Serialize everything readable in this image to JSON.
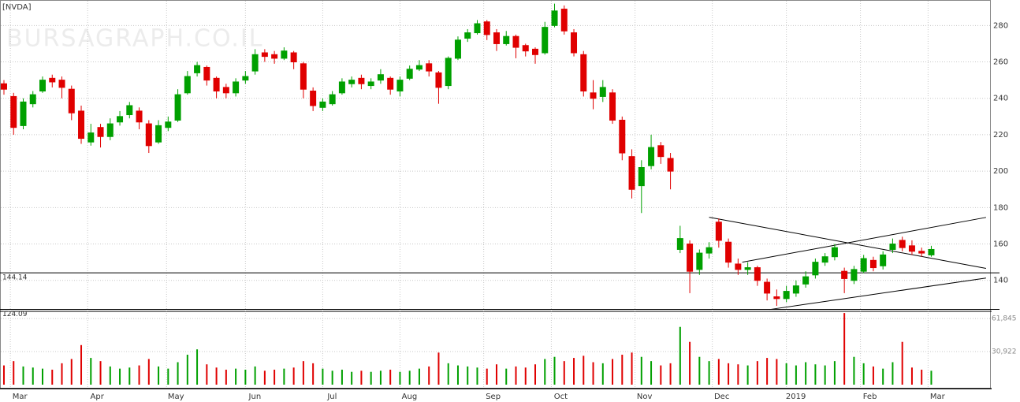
{
  "chart_data": {
    "type": "candlestick",
    "title": "[NVDA]",
    "watermark": "BURSAGRAPH.CO.IL",
    "x": [
      0,
      3,
      6,
      9,
      12,
      15,
      18,
      21,
      24,
      27,
      30,
      33,
      36,
      39,
      42,
      45,
      48,
      51,
      54,
      57,
      60,
      63,
      66,
      69,
      72,
      75,
      78,
      81,
      84,
      87,
      90,
      93,
      96,
      99,
      102,
      105,
      108,
      111,
      114,
      117,
      120,
      123,
      126,
      129,
      132,
      135,
      138,
      141,
      144,
      147,
      150,
      153,
      156,
      159,
      162,
      165,
      168,
      171,
      174,
      177,
      180,
      183,
      186,
      189,
      192,
      195,
      198,
      201,
      204,
      207,
      210,
      213,
      216,
      219,
      222,
      225,
      228,
      231,
      234,
      237,
      240,
      243,
      246,
      249,
      252,
      255,
      258,
      261,
      264,
      267,
      270,
      273,
      276,
      279,
      282,
      285,
      288
    ],
    "open": [
      248,
      241,
      225,
      237,
      244,
      251,
      250,
      245,
      233,
      216,
      224,
      219,
      227,
      231,
      233,
      226,
      216,
      224,
      228,
      243,
      254,
      257,
      251,
      246,
      243,
      250,
      255,
      265,
      264,
      262,
      265,
      259,
      244,
      235,
      237,
      243,
      248,
      251,
      247,
      250,
      251,
      244,
      251,
      256,
      259,
      254,
      247,
      262,
      273,
      276,
      282,
      276,
      270,
      274,
      269,
      267,
      265,
      280,
      289,
      276,
      264,
      243,
      241,
      243,
      228,
      208,
      192,
      203,
      214,
      207,
      157,
      160,
      146,
      155,
      172,
      161,
      149,
      146,
      147,
      139,
      131,
      130,
      133,
      138,
      143,
      150,
      153,
      145,
      140,
      145,
      151,
      148,
      157,
      162,
      159,
      156,
      154
    ],
    "high": [
      250,
      243,
      240,
      244,
      252,
      253,
      252,
      247,
      236,
      226,
      226,
      229,
      233,
      238,
      235,
      228,
      228,
      230,
      245,
      255,
      260,
      258,
      252,
      248,
      251,
      255,
      267,
      267,
      266,
      268,
      266,
      260,
      246,
      240,
      244,
      251,
      252,
      253,
      251,
      256,
      252,
      252,
      258,
      261,
      261,
      255,
      263,
      274,
      278,
      283,
      283,
      278,
      277,
      275,
      270,
      268,
      282,
      292,
      291,
      278,
      266,
      250,
      250,
      245,
      230,
      212,
      206,
      220,
      216,
      210,
      170,
      162,
      157,
      161,
      174,
      163,
      152,
      150,
      148,
      141,
      135,
      137,
      140,
      145,
      152,
      155,
      160,
      147,
      148,
      154,
      153,
      156,
      163,
      164,
      162,
      158,
      159
    ],
    "low": [
      242,
      220,
      223,
      235,
      243,
      246,
      240,
      228,
      215,
      214,
      213,
      217,
      225,
      229,
      223,
      210,
      215,
      222,
      227,
      242,
      252,
      247,
      240,
      240,
      241,
      248,
      253,
      260,
      259,
      261,
      256,
      240,
      233,
      233,
      236,
      242,
      246,
      245,
      245,
      248,
      242,
      241,
      250,
      255,
      252,
      237,
      245,
      261,
      271,
      275,
      272,
      266,
      269,
      262,
      263,
      259,
      264,
      279,
      275,
      263,
      241,
      234,
      238,
      226,
      206,
      185,
      177,
      201,
      204,
      190,
      155,
      133,
      143,
      152,
      158,
      147,
      143,
      143,
      137,
      129,
      126,
      128,
      131,
      136,
      141,
      148,
      151,
      133,
      138,
      144,
      145,
      146,
      155,
      156,
      154,
      153,
      153
    ],
    "close": [
      245,
      224,
      238,
      242,
      250,
      249,
      246,
      232,
      218,
      221,
      219,
      226,
      230,
      236,
      227,
      214,
      225,
      227,
      242,
      252,
      258,
      250,
      244,
      243,
      249,
      252,
      264,
      263,
      262,
      266,
      260,
      245,
      236,
      238,
      242,
      249,
      250,
      248,
      249,
      253,
      245,
      250,
      256,
      258,
      255,
      246,
      262,
      272,
      276,
      281,
      275,
      270,
      274,
      268,
      266,
      264,
      279,
      288,
      277,
      265,
      244,
      240,
      246,
      228,
      210,
      190,
      202,
      213,
      208,
      200,
      163,
      145,
      155,
      158,
      162,
      150,
      146,
      147,
      140,
      133,
      130,
      134,
      137,
      142,
      150,
      153,
      158,
      141,
      146,
      152,
      147,
      154,
      160,
      158,
      156,
      155,
      157
    ],
    "up_color": "#00a000",
    "down_color": "#e00000",
    "xlim": [
      -1,
      305
    ],
    "xticks": [
      {
        "value": 2,
        "label": "Mar"
      },
      {
        "value": 26,
        "label": "Apr"
      },
      {
        "value": 50.5,
        "label": "May"
      },
      {
        "value": 75,
        "label": "Jun"
      },
      {
        "value": 99,
        "label": "Jul"
      },
      {
        "value": 123,
        "label": "Aug"
      },
      {
        "value": 149,
        "label": "Sep"
      },
      {
        "value": 170,
        "label": "Oct"
      },
      {
        "value": 196,
        "label": "Nov"
      },
      {
        "value": 220,
        "label": "Dec"
      },
      {
        "value": 243,
        "label": "2019"
      },
      {
        "value": 266,
        "label": "Feb"
      },
      {
        "value": 287,
        "label": "Mar"
      }
    ],
    "ylim": [
      123,
      294
    ],
    "yticks": [
      140,
      160,
      180,
      200,
      220,
      240,
      260,
      280
    ],
    "levels": [
      144.14,
      124.09
    ],
    "trendlines": [
      {
        "x": [
          219,
          305
        ],
        "y": [
          174.7,
          146.6
        ]
      },
      {
        "x": [
          229.3,
          305
        ],
        "y": [
          150.0,
          174.6
        ]
      },
      {
        "x": [
          237.8,
          305
        ],
        "y": [
          124.0,
          141.3
        ]
      }
    ],
    "volume": [
      18000,
      22000,
      17000,
      16000,
      15000,
      14000,
      20000,
      24000,
      37000,
      25000,
      22000,
      17000,
      15000,
      16000,
      18000,
      24000,
      17000,
      15000,
      21000,
      28000,
      33000,
      19000,
      16000,
      14000,
      15000,
      14000,
      17000,
      13000,
      14000,
      15000,
      16000,
      22000,
      20000,
      15000,
      13000,
      14000,
      12000,
      13000,
      12000,
      13000,
      14000,
      12000,
      13000,
      15000,
      17000,
      30000,
      20000,
      18000,
      17000,
      16000,
      15000,
      19000,
      15000,
      17000,
      16000,
      19000,
      24000,
      26000,
      22000,
      25000,
      27000,
      21000,
      20000,
      24000,
      28000,
      30000,
      26000,
      22000,
      18000,
      20000,
      54000,
      40000,
      26000,
      22000,
      24000,
      20000,
      19000,
      18000,
      22000,
      25000,
      24000,
      20000,
      18000,
      21000,
      19000,
      18000,
      22000,
      67000,
      26000,
      20000,
      17000,
      15000,
      21000,
      40000,
      16000,
      14000,
      13000
    ],
    "volume_ylim": [
      0,
      67800
    ],
    "volume_yticks": [
      {
        "value": 30922,
        "label": "30,922"
      },
      {
        "value": 61845,
        "label": "61,845"
      }
    ],
    "grid": true
  }
}
